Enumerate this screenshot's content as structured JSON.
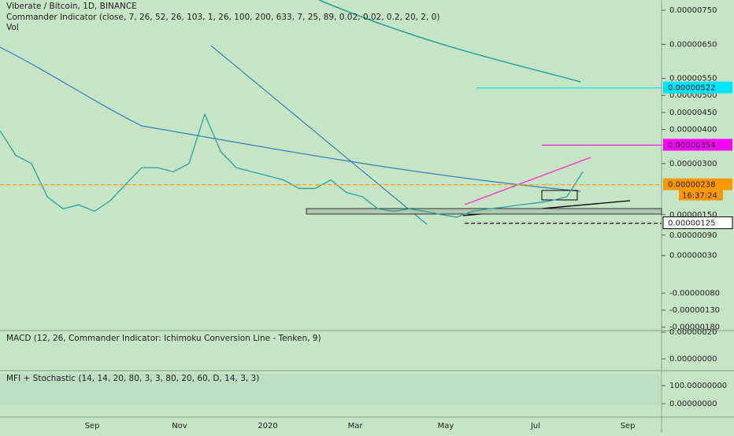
{
  "header": {
    "symbol": "Viberate / Bitcoin, 1D, BINANCE",
    "indicator": "Commander Indicator (close, 7, 26, 52, 26, 103, 1, 26, 100, 200, 633, 7, 25, 89, 0.02, 0.02, 0.2, 20, 2, 0)",
    "volume": "Vol"
  },
  "panes": {
    "macd": "MACD (12, 26, Commander Indicator: Ichimoku Conversion Line - Tenken, 9)",
    "mfi": "MFI + Stochastic (14, 14, 20, 80, 3, 3, 80, 20, 60, D, 14, 3, 3)"
  },
  "price_axis": {
    "ylim": [
      7.8e-06,
      -1.9e-06
    ],
    "ticks": [
      {
        "value": 7.5e-06,
        "label": "0.00000750"
      },
      {
        "value": 6.5e-06,
        "label": "0.00000650"
      },
      {
        "value": 5.5e-06,
        "label": "0.00000550"
      },
      {
        "value": 5e-06,
        "label": "0.00000500"
      },
      {
        "value": 4.5e-06,
        "label": "0.00000450"
      },
      {
        "value": 4e-06,
        "label": "0.00000400"
      },
      {
        "value": 3e-06,
        "label": "0.00000300"
      },
      {
        "value": 1.5e-06,
        "label": "0.00000150"
      },
      {
        "value": 9e-07,
        "label": "0.00000090"
      },
      {
        "value": 3e-07,
        "label": "0.00000030"
      },
      {
        "value": -8e-07,
        "label": "-0.00000080"
      },
      {
        "value": -1.3e-06,
        "label": "-0.00000130"
      },
      {
        "value": -1.8e-06,
        "label": "-0.00000180"
      }
    ]
  },
  "price_tags": [
    {
      "value": 5.22e-06,
      "label": "0.00000522",
      "color": "#00e5ff"
    },
    {
      "value": 3.54e-06,
      "label": "0.00000354",
      "color": "#ff00ff"
    },
    {
      "value": 2.38e-06,
      "label": "0.00000238",
      "color": "#ff9800"
    },
    {
      "value": 1.25e-06,
      "label": "0.00000125",
      "color": "#ffffff"
    }
  ],
  "countdown": "16:37:24",
  "macd_axis": [
    {
      "value": 2e-07,
      "label": "0.00000020"
    },
    {
      "value": 0,
      "label": "0.00000000"
    }
  ],
  "mfi_axis": [
    {
      "value": 100,
      "label": "100.00000000"
    },
    {
      "value": 0,
      "label": "0.00000000"
    }
  ],
  "time_axis": [
    "Sep",
    "Nov",
    "2020",
    "Mar",
    "May",
    "Jul",
    "Sep"
  ],
  "price": {
    "values": [
      3.97e-06,
      3.24e-06,
      3e-06,
      2.03e-06,
      1.67e-06,
      1.79e-06,
      1.6e-06,
      1.91e-06,
      2.4e-06,
      2.88e-06,
      2.88e-06,
      2.76e-06,
      3e-06,
      4.45e-06,
      3.36e-06,
      2.88e-06,
      2.76e-06,
      2.64e-06,
      2.52e-06,
      2.27e-06,
      2.27e-06,
      2.52e-06,
      2.15e-06,
      2.03e-06,
      1.67e-06,
      1.6e-06,
      1.67e-06,
      1.6e-06,
      1.5e-06,
      1.43e-06,
      1.6e-06,
      1.67e-06,
      1.72e-06,
      1.79e-06,
      1.84e-06,
      1.91e-06,
      2.03e-06,
      2.76e-06
    ],
    "color": "#26a69a"
  }
}
